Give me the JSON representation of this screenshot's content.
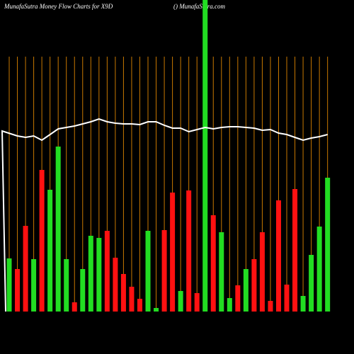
{
  "chart_data": {
    "type": "bar",
    "title": "MunafaSutra  Money Flow  Charts for X9D",
    "subtitle": "() MunafaSutra.com",
    "ylim": [
      0,
      440
    ],
    "grid": true,
    "grid_color": "#c87800",
    "values": [
      75,
      60,
      121,
      74,
      200,
      172,
      233,
      74,
      13,
      60,
      107,
      104,
      114,
      76,
      53,
      35,
      18,
      114,
      5,
      115,
      168,
      29,
      171,
      26,
      440,
      136,
      112,
      19,
      37,
      60,
      74,
      112,
      15,
      157,
      38,
      173,
      22,
      80,
      120,
      189
    ],
    "colors": [
      "#22dd22",
      "#ff1111",
      "#ff1111",
      "#22dd22",
      "#ff1111",
      "#22dd22",
      "#22dd22",
      "#22dd22",
      "#ff1111",
      "#22dd22",
      "#22dd22",
      "#22dd22",
      "#ff1111",
      "#ff1111",
      "#ff1111",
      "#ff1111",
      "#ff1111",
      "#22dd22",
      "#22dd22",
      "#ff1111",
      "#ff1111",
      "#22dd22",
      "#ff1111",
      "#ff1111",
      "#22dd22",
      "#ff1111",
      "#22dd22",
      "#22dd22",
      "#ff1111",
      "#22dd22",
      "#ff1111",
      "#ff1111",
      "#ff1111",
      "#ff1111",
      "#ff1111",
      "#ff1111",
      "#22dd22",
      "#22dd22",
      "#22dd22",
      "#22dd22"
    ],
    "line": {
      "color": "#ffffff",
      "values": [
        255,
        248,
        246,
        248,
        242,
        250,
        258,
        260,
        262,
        265,
        268,
        272,
        268,
        266,
        265,
        265,
        264,
        268,
        268,
        263,
        259,
        259,
        254,
        257,
        260,
        258,
        260,
        261,
        261,
        260,
        259,
        256,
        257,
        252,
        250,
        246,
        242,
        245,
        247,
        250
      ]
    }
  }
}
